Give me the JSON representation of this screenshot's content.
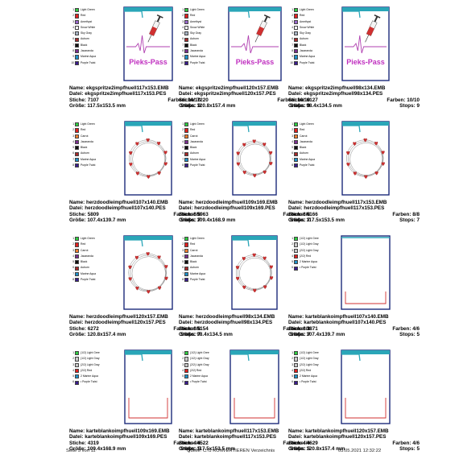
{
  "labels": {
    "name": "Name:",
    "file": "Datei:",
    "stitches": "Stiche:",
    "colors": "Farben:",
    "size": "Größe:",
    "stops": "Stops:"
  },
  "palettes": {
    "A": [
      {
        "n": "1",
        "name": "Light Green",
        "color": "#2ecc40"
      },
      {
        "n": "2",
        "name": "Red",
        "color": "#e02020"
      },
      {
        "n": "3",
        "name": "Amethyst",
        "color": "#9966cc"
      },
      {
        "n": "4",
        "name": "Snow White",
        "color": "#fafafa"
      },
      {
        "n": "5",
        "name": "Sky Gray",
        "color": "#a8b4c4"
      },
      {
        "n": "6",
        "name": "Auburn",
        "color": "#a52a2a"
      },
      {
        "n": "7",
        "name": "Black",
        "color": "#111111"
      },
      {
        "n": "8",
        "name": "Jacaranda",
        "color": "#7a2e8e"
      },
      {
        "n": "9",
        "name": "Marine Aqua",
        "color": "#1e90c8"
      },
      {
        "n": "10",
        "name": "Purple Twist",
        "color": "#3a1c8c"
      }
    ],
    "B": [
      {
        "n": "1",
        "name": "Light Green",
        "color": "#2ecc40"
      },
      {
        "n": "2",
        "name": "Red",
        "color": "#e02020"
      },
      {
        "n": "3",
        "name": "Carrot",
        "color": "#f08030"
      },
      {
        "n": "4",
        "name": "Jacaranda",
        "color": "#7a2e8e"
      },
      {
        "n": "5",
        "name": "Black",
        "color": "#111111"
      },
      {
        "n": "6",
        "name": "Auburn",
        "color": "#a52a2a"
      },
      {
        "n": "7",
        "name": "Marine Aqua",
        "color": "#1e90c8"
      },
      {
        "n": "8",
        "name": "Purple Twist",
        "color": "#3a1c8c"
      }
    ],
    "C": [
      {
        "n": "1",
        "name": "(1/2) Light Gree",
        "color": "#2ecc40"
      },
      {
        "n": "2",
        "name": "(1/2) Light Gray",
        "color": "#c8c8c8"
      },
      {
        "n": "3",
        "name": "(2/2) Light Gray",
        "color": "#c8c8c8"
      },
      {
        "n": "4",
        "name": "(2/2) Red",
        "color": "#e02020"
      },
      {
        "n": "5",
        "name": "2 Marine Aqua",
        "color": "#1e90c8"
      },
      {
        "n": "6",
        "name": "• Purple Twist",
        "color": "#3a1c8c"
      }
    ],
    "D": [
      {
        "n": "1",
        "name": "(1/2) Light Gree",
        "color": "#2ecc40"
      },
      {
        "n": "2",
        "name": "(1/2) Light Gray",
        "color": "#c8c8c8"
      },
      {
        "n": "3",
        "name": "(2/2) Light Gray",
        "color": "#c8c8c8"
      },
      {
        "n": "4",
        "name": "(2/2) Red",
        "color": "#e02020"
      },
      {
        "n": "5",
        "name": "2 Marine Aqua",
        "color": "#1e90c8"
      },
      {
        "n": "6",
        "name": "• Purple Twist",
        "color": "#3a1c8c"
      }
    ]
  },
  "pieks_text": "Pieks-Pass",
  "cells": [
    {
      "name": "ekgspritze2impfhuell117x153.EMB",
      "file": "ekgspritze2impfhuell117x153.PES",
      "stitches": "7107",
      "colors": "10/10",
      "size": "117.5x153.5 mm",
      "stops": "9"
    },
    {
      "name": "ekgspritze2impfhuell120x157.EMB",
      "file": "ekgspritze2impfhuell120x157.PES",
      "stitches": "7220",
      "colors": "10/10",
      "size": "120.8x157.4 mm",
      "stops": "9"
    },
    {
      "name": "ekgspritze2impfhuell98x134.EMB",
      "file": "ekgspritze2impfhuell98x134.PES",
      "stitches": "6127",
      "colors": "10/10",
      "size": "98.4x134.5 mm",
      "stops": "9"
    },
    {
      "name": "herzdoodleimpfhuell107x140.EMB",
      "file": "herzdoodleimpfhuell107x140.PES",
      "stitches": "5809",
      "colors": "8/8",
      "size": "107.4x139.7 mm",
      "stops": "7"
    },
    {
      "name": "herzdoodleimpfhuell109x169.EMB",
      "file": "herzdoodleimpfhuell109x169.PES",
      "stitches": "5963",
      "colors": "8/8",
      "size": "109.4x168.9 mm",
      "stops": "7"
    },
    {
      "name": "herzdoodleimpfhuell117x153.EMB",
      "file": "herzdoodleimpfhuell117x153.PES",
      "stitches": "6166",
      "colors": "8/8",
      "size": "117.5x153.5 mm",
      "stops": "7"
    },
    {
      "name": "herzdoodleimpfhuell120x157.EMB",
      "file": "herzdoodleimpfhuell120x157.PES",
      "stitches": "6272",
      "colors": "8/8",
      "size": "120.8x157.4 mm",
      "stops": "7"
    },
    {
      "name": "herzdoodleimpfhuell98x134.EMB",
      "file": "herzdoodleimpfhuell98x134.PES",
      "stitches": "5154",
      "colors": "8/8",
      "size": "98.4x134.5 mm",
      "stops": "7"
    },
    {
      "name": "karteblankoimpfhuell107x140.EMB",
      "file": "karteblankoimpfhuell107x140.PES",
      "stitches": "3871",
      "colors": "4/6",
      "size": "107.4x139.7 mm",
      "stops": "5"
    },
    {
      "name": "karteblankoimpfhuell109x169.EMB",
      "file": "karteblankoimpfhuell109x169.PES",
      "stitches": "4319",
      "colors": "4/6",
      "size": "109.4x168.9 mm",
      "stops": "5"
    },
    {
      "name": "karteblankoimpfhuell117x153.EMB",
      "file": "karteblankoimpfhuell117x153.PES",
      "stitches": "4522",
      "colors": "4/6",
      "size": "117.5x153.5 mm",
      "stops": "5"
    },
    {
      "name": "karteblankoimpfhuell120x157.EMB",
      "file": "karteblankoimpfhuell120x157.PES",
      "stitches": "4629",
      "colors": "4/6",
      "size": "120.8x157.4 mm",
      "stops": "5"
    }
  ],
  "footer": {
    "page": "Seite 5 von 11",
    "source": "Quelle: C:\\1 KONVERTIEREN Verzeichnis",
    "datetime": "03.05.2021 12:32:22"
  },
  "colors": {
    "teal": "#2aa6b8",
    "navy": "#1c2a7a",
    "red": "#d03030",
    "pink_text": "#c030c0"
  }
}
